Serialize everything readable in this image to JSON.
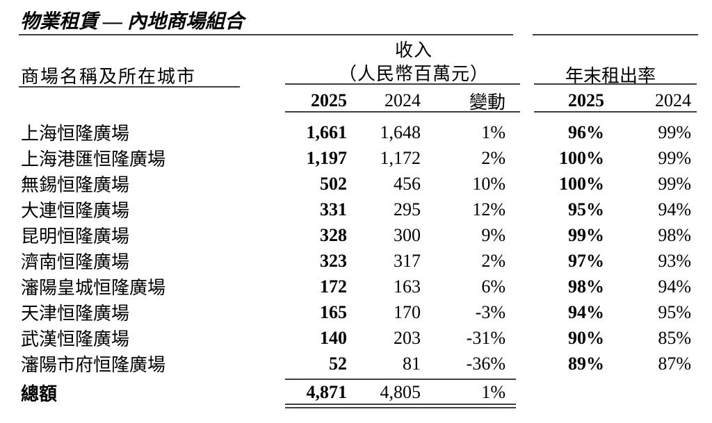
{
  "page": {
    "title": "物業租賃 — 內地商場組合"
  },
  "table": {
    "name_header": "商場名稱及所在城市",
    "revenue_group": {
      "title": "收入",
      "unit": "（人民幣百萬元）",
      "col_2025": "2025",
      "col_2024": "2024",
      "col_change": "變動"
    },
    "occupancy_group": {
      "title": "年末租出率",
      "col_2025": "2025",
      "col_2024": "2024"
    },
    "rows": [
      {
        "name": "上海恒隆廣場",
        "rev_2025": "1,661",
        "rev_2024": "1,648",
        "change": "1%",
        "occ_2025": "96%",
        "occ_2024": "99%"
      },
      {
        "name": "上海港匯恒隆廣場",
        "rev_2025": "1,197",
        "rev_2024": "1,172",
        "change": "2%",
        "occ_2025": "100%",
        "occ_2024": "99%"
      },
      {
        "name": "無錫恒隆廣場",
        "rev_2025": "502",
        "rev_2024": "456",
        "change": "10%",
        "occ_2025": "100%",
        "occ_2024": "99%"
      },
      {
        "name": "大連恒隆廣場",
        "rev_2025": "331",
        "rev_2024": "295",
        "change": "12%",
        "occ_2025": "95%",
        "occ_2024": "94%"
      },
      {
        "name": "昆明恒隆廣場",
        "rev_2025": "328",
        "rev_2024": "300",
        "change": "9%",
        "occ_2025": "99%",
        "occ_2024": "98%"
      },
      {
        "name": "濟南恒隆廣場",
        "rev_2025": "323",
        "rev_2024": "317",
        "change": "2%",
        "occ_2025": "97%",
        "occ_2024": "93%"
      },
      {
        "name": "瀋陽皇城恒隆廣場",
        "rev_2025": "172",
        "rev_2024": "163",
        "change": "6%",
        "occ_2025": "98%",
        "occ_2024": "94%"
      },
      {
        "name": "天津恒隆廣場",
        "rev_2025": "165",
        "rev_2024": "170",
        "change": "-3%",
        "occ_2025": "94%",
        "occ_2024": "95%"
      },
      {
        "name": "武漢恒隆廣場",
        "rev_2025": "140",
        "rev_2024": "203",
        "change": "-31%",
        "occ_2025": "90%",
        "occ_2024": "85%"
      },
      {
        "name": "瀋陽市府恒隆廣場",
        "rev_2025": "52",
        "rev_2024": "81",
        "change": "-36%",
        "occ_2025": "89%",
        "occ_2024": "87%"
      }
    ],
    "total": {
      "label": "總額",
      "rev_2025": "4,871",
      "rev_2024": "4,805",
      "change": "1%"
    }
  },
  "colors": {
    "background": "#ffffff",
    "text": "#000000",
    "rule": "#3f3f3f"
  }
}
